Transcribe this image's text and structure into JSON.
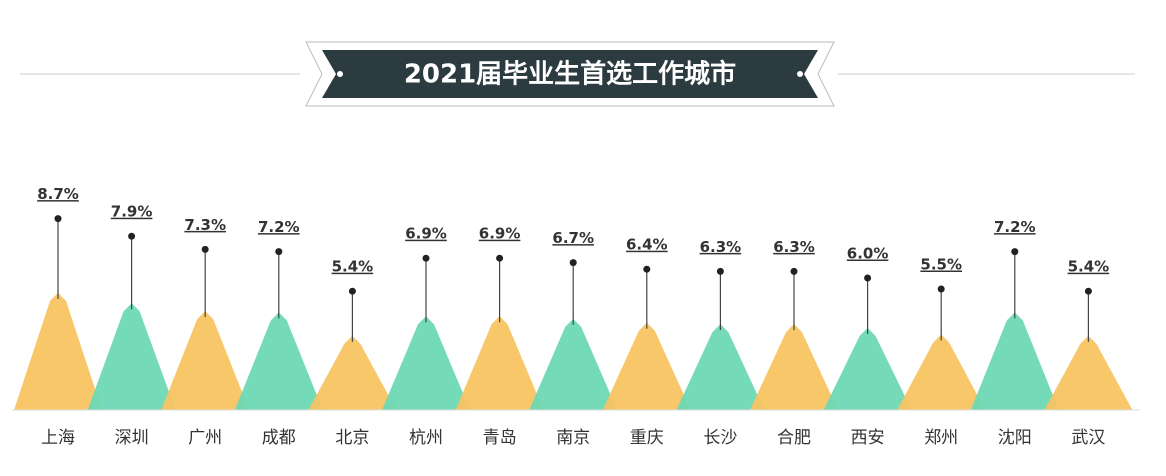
{
  "chart_data": {
    "type": "peak",
    "title": "2021届毕业生首选工作城市",
    "categories": [
      "上海",
      "深圳",
      "广州",
      "成都",
      "北京",
      "杭州",
      "青岛",
      "南京",
      "重庆",
      "长沙",
      "合肥",
      "西安",
      "郑州",
      "沈阳",
      "武汉"
    ],
    "values": [
      8.7,
      7.9,
      7.3,
      7.2,
      5.4,
      6.9,
      6.9,
      6.7,
      6.4,
      6.3,
      6.3,
      6.0,
      5.5,
      7.2,
      5.4
    ],
    "value_labels": [
      "8.7%",
      "7.9%",
      "7.3%",
      "7.2%",
      "5.4%",
      "6.9%",
      "6.9%",
      "6.7%",
      "6.4%",
      "6.3%",
      "6.3%",
      "6.0%",
      "5.5%",
      "7.2%",
      "5.4%"
    ],
    "colors": [
      "#f8c462",
      "#6ed8b4"
    ]
  }
}
